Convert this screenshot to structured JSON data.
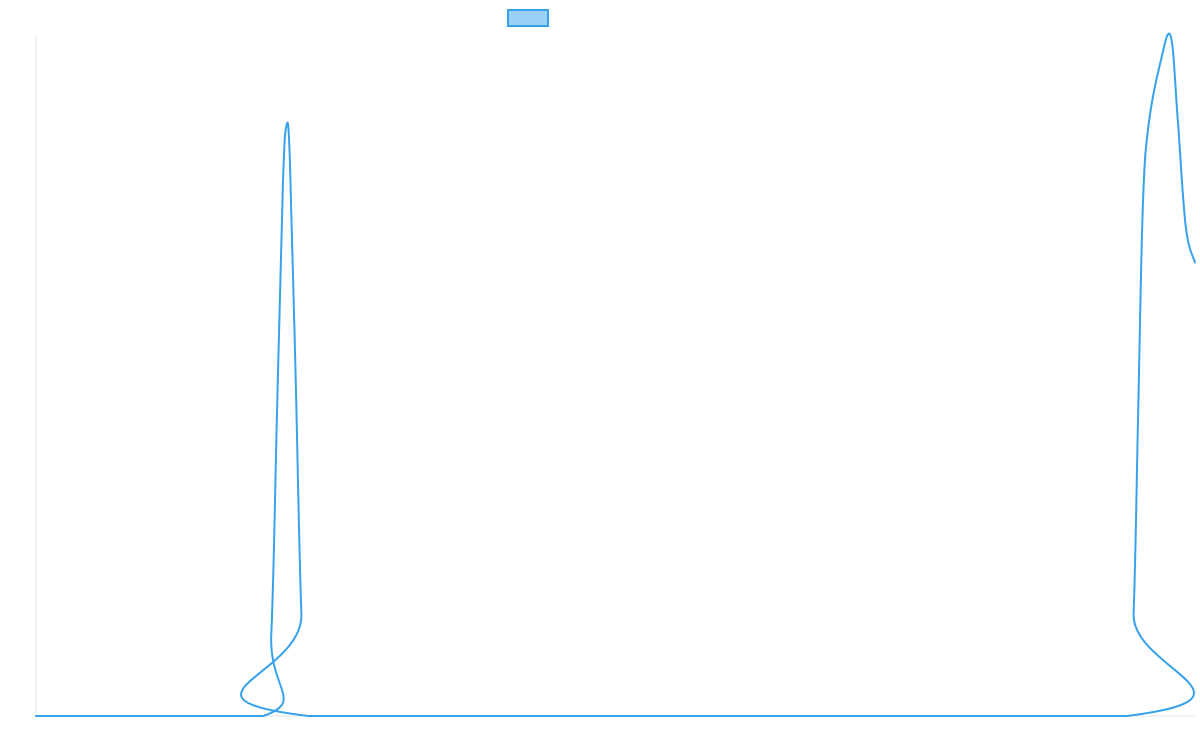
{
  "chart_data": {
    "type": "line",
    "title": "",
    "xlabel": "",
    "ylabel": "",
    "grid": false,
    "legend": {
      "position": "top-center",
      "show_label": false
    },
    "xlim": [
      0,
      100
    ],
    "ylim": [
      0,
      1
    ],
    "series": [
      {
        "color": "#36a2eb",
        "fill": "#9ad0f5",
        "points": [
          [
            0,
            0
          ],
          [
            19.6,
            0
          ],
          [
            20.3,
            0.12
          ],
          [
            20.8,
            0.45
          ],
          [
            21.3,
            0.78
          ],
          [
            21.6,
            0.867
          ],
          [
            21.9,
            0.82
          ],
          [
            22.4,
            0.5
          ],
          [
            22.9,
            0.15
          ],
          [
            23.5,
            0
          ],
          [
            94.1,
            0
          ],
          [
            94.7,
            0.15
          ],
          [
            95.1,
            0.45
          ],
          [
            95.5,
            0.75
          ],
          [
            96.0,
            0.87
          ],
          [
            97.0,
            0.96
          ],
          [
            97.9,
            1.0
          ],
          [
            98.5,
            0.88
          ],
          [
            99.2,
            0.72
          ],
          [
            100,
            0.667
          ]
        ]
      }
    ]
  }
}
